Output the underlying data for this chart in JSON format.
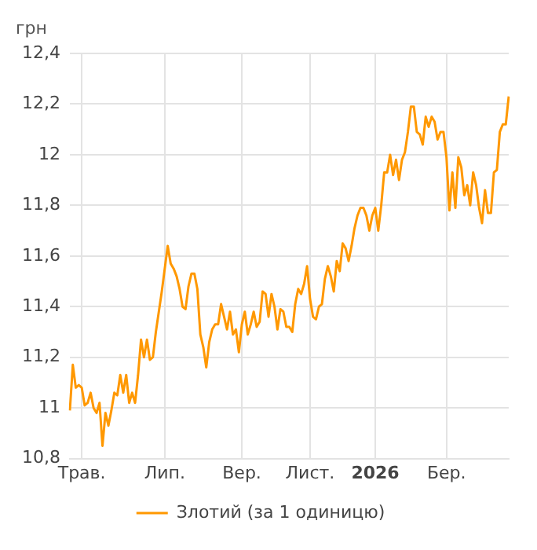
{
  "chart_data": {
    "type": "line",
    "ylabel": "грн",
    "legend": "bottom",
    "grid": true,
    "marker": "none",
    "line_style": "solid",
    "categories": [
      null,
      null,
      null,
      null,
      "Трав.",
      null,
      null,
      null,
      null,
      null,
      null,
      null,
      null,
      null,
      null,
      null,
      null,
      null,
      null,
      null,
      null,
      null,
      null,
      null,
      null,
      null,
      null,
      null,
      null,
      null,
      null,
      null,
      "Лип.",
      null,
      null,
      null,
      null,
      null,
      null,
      null,
      null,
      null,
      null,
      null,
      null,
      null,
      null,
      null,
      null,
      null,
      null,
      null,
      null,
      null,
      null,
      null,
      null,
      null,
      "Вер.",
      null,
      null,
      null,
      null,
      null,
      null,
      null,
      null,
      null,
      null,
      null,
      null,
      null,
      null,
      null,
      null,
      null,
      null,
      null,
      null,
      null,
      null,
      "Лист.",
      null,
      null,
      null,
      null,
      null,
      null,
      null,
      null,
      null,
      null,
      null,
      null,
      null,
      null,
      null,
      null,
      null,
      null,
      null,
      null,
      null,
      "2026",
      null,
      null,
      null,
      null,
      null,
      null,
      null,
      null,
      null,
      null,
      null,
      null,
      null,
      null,
      null,
      null,
      null,
      null,
      null,
      null,
      null,
      null,
      null,
      "Бер.",
      null,
      null,
      null,
      null,
      null,
      null,
      null,
      null,
      null,
      null,
      null,
      null,
      null,
      null,
      null,
      null,
      null,
      null,
      null,
      null,
      null
    ],
    "ylim": [
      10.8,
      12.4
    ],
    "yticks": [
      {
        "value": 10.8,
        "label": "10,8"
      },
      11,
      {
        "value": 11.2,
        "label": "11,2"
      },
      {
        "value": 11.4,
        "label": "11,4"
      },
      {
        "value": 11.6,
        "label": "11,6"
      },
      {
        "value": 11.8,
        "label": "11,8"
      },
      12,
      {
        "value": 12.2,
        "label": "12,2"
      },
      {
        "value": 12.4,
        "label": "12,4"
      }
    ],
    "series": [
      {
        "name": "Злотий (за 1 одиницю)",
        "color": "#ff9800",
        "values": [
          10.99,
          11.17,
          11.08,
          11.09,
          11.08,
          11.01,
          11.02,
          11.06,
          11.0,
          10.98,
          11.02,
          10.85,
          10.98,
          10.93,
          10.99,
          11.06,
          11.05,
          11.13,
          11.06,
          11.13,
          11.02,
          11.06,
          11.02,
          11.13,
          11.27,
          11.2,
          11.27,
          11.19,
          11.2,
          11.3,
          11.38,
          11.46,
          11.55,
          11.64,
          11.57,
          11.55,
          11.52,
          11.47,
          11.4,
          11.39,
          11.48,
          11.53,
          11.53,
          11.47,
          11.29,
          11.24,
          11.16,
          11.26,
          11.31,
          11.33,
          11.33,
          11.41,
          11.36,
          11.31,
          11.38,
          11.29,
          11.31,
          11.22,
          11.33,
          11.38,
          11.29,
          11.33,
          11.38,
          11.32,
          11.34,
          11.46,
          11.45,
          11.36,
          11.45,
          11.4,
          11.31,
          11.39,
          11.38,
          11.32,
          11.32,
          11.3,
          11.41,
          11.47,
          11.45,
          11.49,
          11.56,
          11.43,
          11.36,
          11.35,
          11.4,
          11.41,
          11.51,
          11.56,
          11.52,
          11.46,
          11.58,
          11.54,
          11.65,
          11.63,
          11.58,
          11.64,
          11.71,
          11.76,
          11.79,
          11.79,
          11.76,
          11.7,
          11.76,
          11.79,
          11.7,
          11.8,
          11.93,
          11.93,
          12.0,
          11.92,
          11.98,
          11.9,
          11.98,
          12.01,
          12.09,
          12.19,
          12.19,
          12.09,
          12.08,
          12.04,
          12.15,
          12.11,
          12.15,
          12.13,
          12.06,
          12.09,
          12.09,
          11.99,
          11.78,
          11.93,
          11.79,
          11.99,
          11.95,
          11.84,
          11.88,
          11.8,
          11.93,
          11.88,
          11.79,
          11.73,
          11.86,
          11.77,
          11.77,
          11.93,
          11.94,
          12.09,
          12.12,
          12.12,
          12.23
        ]
      }
    ]
  }
}
